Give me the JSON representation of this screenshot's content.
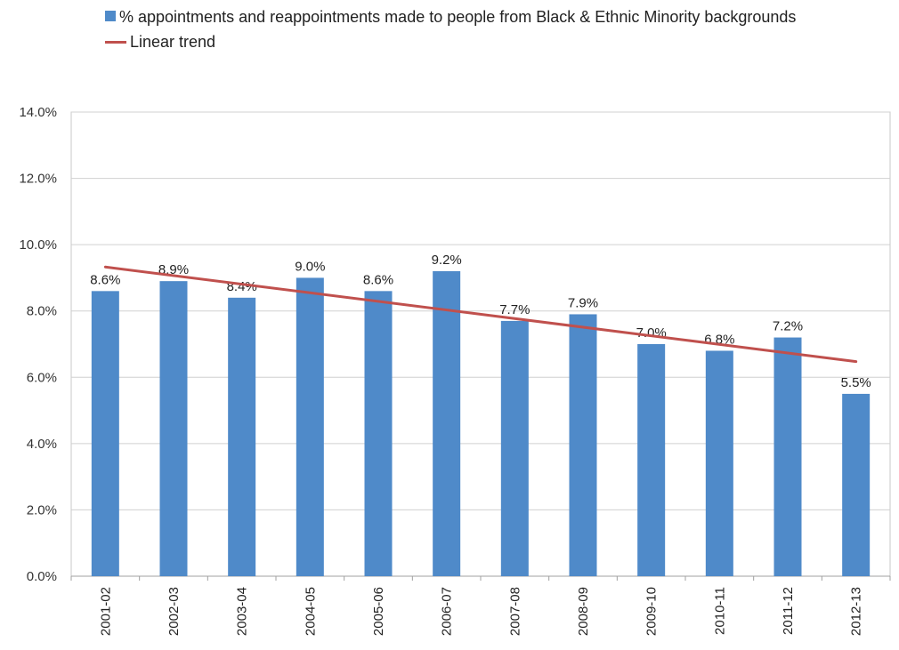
{
  "chart_data": {
    "type": "bar",
    "categories": [
      "2001-02",
      "2002-03",
      "2003-04",
      "2004-05",
      "2005-06",
      "2006-07",
      "2007-08",
      "2008-09",
      "2009-10",
      "2010-11",
      "2011-12",
      "2012-13"
    ],
    "series": [
      {
        "name": "% appointments and reappointments made to people from Black & Ethnic Minority backgrounds",
        "values": [
          8.6,
          8.9,
          8.4,
          9.0,
          8.6,
          9.2,
          7.7,
          7.9,
          7.0,
          6.8,
          7.2,
          5.5
        ],
        "data_labels": [
          "8.6%",
          "8.9%",
          "8.4%",
          "9.0%",
          "8.6%",
          "9.2%",
          "7.7%",
          "7.9%",
          "7.0%",
          "6.8%",
          "7.2%",
          "5.5%"
        ],
        "color": "#4f8ac9"
      }
    ],
    "trend": {
      "name": "Linear trend",
      "type": "linear",
      "color": "#c0504d"
    },
    "ylim": [
      0,
      14
    ],
    "yticks": [
      0,
      2,
      4,
      6,
      8,
      10,
      12,
      14
    ],
    "ytick_labels": [
      "0.0%",
      "2.0%",
      "4.0%",
      "6.0%",
      "8.0%",
      "10.0%",
      "12.0%",
      "14.0%"
    ],
    "grid": true,
    "legend_position": "top-left",
    "title": "",
    "xlabel": "",
    "ylabel": ""
  }
}
